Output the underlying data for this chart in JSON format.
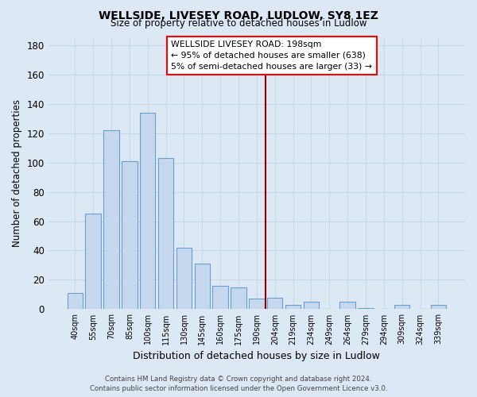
{
  "title": "WELLSIDE, LIVESEY ROAD, LUDLOW, SY8 1EZ",
  "subtitle": "Size of property relative to detached houses in Ludlow",
  "xlabel": "Distribution of detached houses by size in Ludlow",
  "ylabel": "Number of detached properties",
  "bar_labels": [
    "40sqm",
    "55sqm",
    "70sqm",
    "85sqm",
    "100sqm",
    "115sqm",
    "130sqm",
    "145sqm",
    "160sqm",
    "175sqm",
    "190sqm",
    "204sqm",
    "219sqm",
    "234sqm",
    "249sqm",
    "264sqm",
    "279sqm",
    "294sqm",
    "309sqm",
    "324sqm",
    "339sqm"
  ],
  "bar_values": [
    11,
    65,
    122,
    101,
    134,
    103,
    42,
    31,
    16,
    15,
    7,
    8,
    3,
    5,
    0,
    5,
    1,
    0,
    3,
    0,
    3
  ],
  "bar_color": "#c5d8ee",
  "bar_edge_color": "#6aa0cc",
  "vline_index": 11,
  "vline_color": "#8b0000",
  "annotation_title": "WELLSIDE LIVESEY ROAD: 198sqm",
  "annotation_line1": "← 95% of detached houses are smaller (638)",
  "annotation_line2": "5% of semi-detached houses are larger (33) →",
  "ylim": [
    0,
    185
  ],
  "yticks": [
    0,
    20,
    40,
    60,
    80,
    100,
    120,
    140,
    160,
    180
  ],
  "background_color": "#dce9f5",
  "grid_color": "#c8d8e8",
  "footer_line1": "Contains HM Land Registry data © Crown copyright and database right 2024.",
  "footer_line2": "Contains public sector information licensed under the Open Government Licence v3.0."
}
